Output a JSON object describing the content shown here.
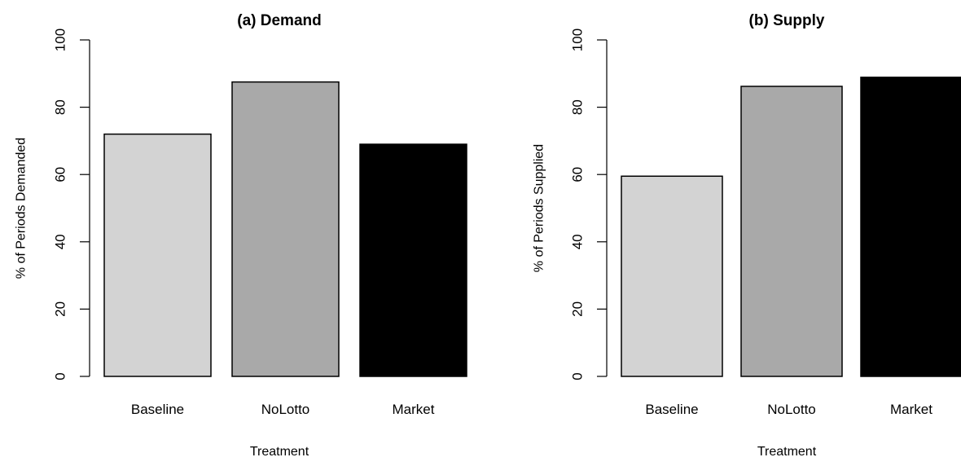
{
  "chart_data": [
    {
      "type": "bar",
      "title": "(a) Demand",
      "xlabel": "Treatment",
      "ylabel": "% of Periods Demanded",
      "categories": [
        "Baseline",
        "NoLotto",
        "Market"
      ],
      "values": [
        72,
        87.5,
        69
      ],
      "colors": [
        "#d3d3d3",
        "#a9a9a9",
        "#000000"
      ],
      "ylim": [
        0,
        100
      ],
      "yticks": [
        "0",
        "20",
        "40",
        "60",
        "80",
        "100"
      ],
      "grid": false,
      "legend": "none"
    },
    {
      "type": "bar",
      "title": "(b) Supply",
      "xlabel": "Treatment",
      "ylabel": "% of Periods Supplied",
      "categories": [
        "Baseline",
        "NoLotto",
        "Market"
      ],
      "values": [
        59.5,
        86.2,
        88.9
      ],
      "colors": [
        "#d3d3d3",
        "#a9a9a9",
        "#000000"
      ],
      "ylim": [
        0,
        100
      ],
      "yticks": [
        "0",
        "20",
        "40",
        "60",
        "80",
        "100"
      ],
      "grid": false,
      "legend": "none"
    }
  ]
}
